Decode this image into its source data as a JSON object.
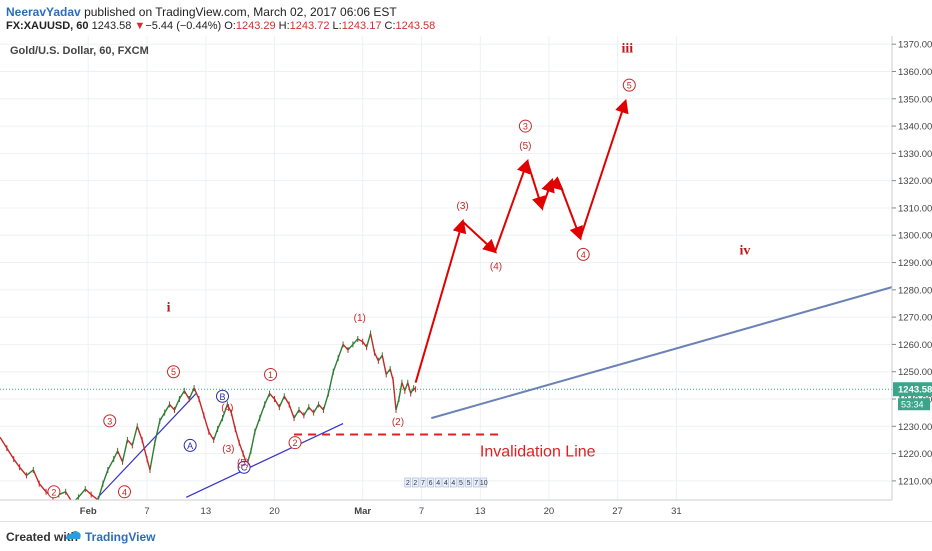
{
  "header": {
    "author": "NeeravYadav",
    "published": "published on TradingView.com, March 02, 2017 06:06 EST",
    "symbol": "FX:XAUUSD, 60",
    "last": "1243.58",
    "change_arrow": "▼",
    "change": "−5.44 (−0.44%)",
    "o_label": "O:",
    "o_value": "1243.29",
    "h_label": "H:",
    "h_value": "1243.72",
    "l_label": "L:",
    "l_value": "1243.17",
    "c_label": "C:",
    "c_value": "1243.58"
  },
  "chart_data": {
    "type": "line",
    "title": "Gold/U.S. Dollar, 60, FXCM",
    "ylim": [
      1203,
      1373
    ],
    "y_ticks": [
      "1210.00",
      "1220.00",
      "1230.00",
      "1240.00",
      "1250.00",
      "1260.00",
      "1270.00",
      "1280.00",
      "1290.00",
      "1300.00",
      "1310.00",
      "1320.00",
      "1330.00",
      "1340.00",
      "1350.00",
      "1360.00",
      "1370.00"
    ],
    "y_tick_values": [
      1210,
      1220,
      1230,
      1240,
      1250,
      1260,
      1270,
      1280,
      1290,
      1300,
      1310,
      1320,
      1330,
      1340,
      1350,
      1360,
      1370
    ],
    "x_ticks": [
      "Feb",
      "7",
      "13",
      "20",
      "Mar",
      "7",
      "13",
      "20",
      "27",
      "31"
    ],
    "x_tick_days": [
      0,
      6,
      12,
      19,
      28,
      34,
      40,
      47,
      54,
      60
    ],
    "x_range_days": [
      -9,
      82
    ],
    "last_price_label": "1243.58",
    "countdown_label": "53:34",
    "last_price": 1243.58,
    "price_series": [
      [
        -9,
        1226
      ],
      [
        -8.3,
        1222
      ],
      [
        -7.6,
        1218
      ],
      [
        -7,
        1215
      ],
      [
        -6.3,
        1212
      ],
      [
        -5.6,
        1214
      ],
      [
        -5,
        1209
      ],
      [
        -4.3,
        1206
      ],
      [
        -3.6,
        1204
      ],
      [
        -3,
        1205
      ],
      [
        -2.3,
        1206
      ],
      [
        -1.6,
        1202
      ],
      [
        -1,
        1204
      ],
      [
        -0.3,
        1207
      ],
      [
        0.3,
        1205
      ],
      [
        1,
        1203
      ],
      [
        1.5,
        1209
      ],
      [
        2,
        1214
      ],
      [
        2.6,
        1218
      ],
      [
        3,
        1221
      ],
      [
        3.5,
        1217
      ],
      [
        4,
        1225
      ],
      [
        4.5,
        1223
      ],
      [
        5,
        1230
      ],
      [
        5.5,
        1225
      ],
      [
        6,
        1218
      ],
      [
        6.3,
        1214
      ],
      [
        6.8,
        1224
      ],
      [
        7.3,
        1232
      ],
      [
        7.8,
        1235
      ],
      [
        8.3,
        1238
      ],
      [
        8.8,
        1236
      ],
      [
        9.3,
        1240
      ],
      [
        9.8,
        1243
      ],
      [
        10.3,
        1240
      ],
      [
        10.8,
        1244
      ],
      [
        11.3,
        1240
      ],
      [
        11.8,
        1234
      ],
      [
        12.3,
        1228
      ],
      [
        12.8,
        1225
      ],
      [
        13.2,
        1229
      ],
      [
        13.7,
        1233
      ],
      [
        14.2,
        1238
      ],
      [
        14.6,
        1235
      ],
      [
        15,
        1229
      ],
      [
        15.4,
        1224
      ],
      [
        15.8,
        1220
      ],
      [
        16.2,
        1216
      ],
      [
        16.6,
        1221
      ],
      [
        17,
        1228
      ],
      [
        17.5,
        1233
      ],
      [
        18,
        1238
      ],
      [
        18.5,
        1242
      ],
      [
        19,
        1240
      ],
      [
        19.5,
        1237
      ],
      [
        20,
        1241
      ],
      [
        20.5,
        1238
      ],
      [
        21,
        1233
      ],
      [
        21.5,
        1236
      ],
      [
        22,
        1234
      ],
      [
        22.5,
        1237
      ],
      [
        23,
        1235
      ],
      [
        23.5,
        1238
      ],
      [
        24,
        1236
      ],
      [
        24.5,
        1242
      ],
      [
        25,
        1250
      ],
      [
        25.5,
        1255
      ],
      [
        26,
        1260
      ],
      [
        26.5,
        1258
      ],
      [
        27,
        1260
      ],
      [
        27.5,
        1262
      ],
      [
        28,
        1261
      ],
      [
        28.4,
        1259
      ],
      [
        28.8,
        1264
      ],
      [
        29.2,
        1257
      ],
      [
        29.6,
        1254
      ],
      [
        30,
        1256
      ],
      [
        30.4,
        1249
      ],
      [
        30.8,
        1251
      ],
      [
        31.1,
        1247
      ],
      [
        31.4,
        1236
      ],
      [
        31.7,
        1240
      ],
      [
        32,
        1246
      ],
      [
        32.3,
        1243
      ],
      [
        32.6,
        1246
      ],
      [
        32.9,
        1242
      ],
      [
        33.2,
        1244
      ],
      [
        33.4,
        1243.58
      ]
    ],
    "projection": [
      [
        33.4,
        1246
      ],
      [
        38.2,
        1305
      ],
      [
        41.5,
        1294
      ],
      [
        44.8,
        1327
      ],
      [
        46.3,
        1310
      ],
      [
        47.3,
        1320
      ],
      [
        48.3,
        1317
      ],
      [
        50.2,
        1299
      ],
      [
        54.8,
        1349
      ]
    ],
    "channel_lines": [
      {
        "from": [
          1,
          1204
        ],
        "to": [
          11,
          1242
        ]
      },
      {
        "from": [
          10,
          1204
        ],
        "to": [
          26,
          1231
        ]
      }
    ],
    "trend_line": {
      "from": [
        35,
        1233
      ],
      "to": [
        82,
        1281
      ]
    },
    "invalidation_line": {
      "from": [
        21,
        1227
      ],
      "to": [
        42,
        1227
      ]
    },
    "invalidation_label": "Invalidation Line",
    "wave_labels": [
      {
        "text": "i",
        "x": 8.2,
        "y": 1272,
        "style": "plain"
      },
      {
        "text": "iii",
        "x": 55,
        "y": 1367,
        "style": "plain"
      },
      {
        "text": "iv",
        "x": 67,
        "y": 1293,
        "style": "plain"
      },
      {
        "text": "5",
        "x": 8.7,
        "y": 1250,
        "style": "circle"
      },
      {
        "text": "3",
        "x": 2.2,
        "y": 1232,
        "style": "circle"
      },
      {
        "text": "4",
        "x": 3.7,
        "y": 1206,
        "style": "circle"
      },
      {
        "text": "2",
        "x": -3.5,
        "y": 1206,
        "style": "circle"
      },
      {
        "text": "A",
        "x": 10.4,
        "y": 1223,
        "style": "circle-blue"
      },
      {
        "text": "B",
        "x": 13.7,
        "y": 1241,
        "style": "circle-blue"
      },
      {
        "text": "C",
        "x": 15.9,
        "y": 1215,
        "style": "circle-blue"
      },
      {
        "text": "(4)",
        "x": 14.2,
        "y": 1237,
        "style": "paren"
      },
      {
        "text": "(3)",
        "x": 14.3,
        "y": 1222,
        "style": "paren"
      },
      {
        "text": "(5)",
        "x": 15.8,
        "y": 1217,
        "style": "paren"
      },
      {
        "text": "1",
        "x": 18.6,
        "y": 1249,
        "style": "circle"
      },
      {
        "text": "2",
        "x": 21.1,
        "y": 1224,
        "style": "circle"
      },
      {
        "text": "(1)",
        "x": 27.7,
        "y": 1270,
        "style": "paren"
      },
      {
        "text": "(2)",
        "x": 31.6,
        "y": 1232,
        "style": "paren"
      },
      {
        "text": "(3)",
        "x": 38.2,
        "y": 1311,
        "style": "paren"
      },
      {
        "text": "(4)",
        "x": 41.6,
        "y": 1289,
        "style": "paren"
      },
      {
        "text": "3",
        "x": 44.6,
        "y": 1340,
        "style": "circle"
      },
      {
        "text": "(5)",
        "x": 44.6,
        "y": 1333,
        "style": "paren"
      },
      {
        "text": "4",
        "x": 50.5,
        "y": 1293,
        "style": "circle"
      },
      {
        "text": "5",
        "x": 55.2,
        "y": 1355,
        "style": "circle"
      }
    ],
    "event_markers": [
      "2",
      "2",
      "7",
      "6",
      "4",
      "4",
      "4",
      "5",
      "5",
      "7",
      "10"
    ],
    "grid": true
  },
  "footer": {
    "created_with": "Created with",
    "brand": "TradingView"
  }
}
